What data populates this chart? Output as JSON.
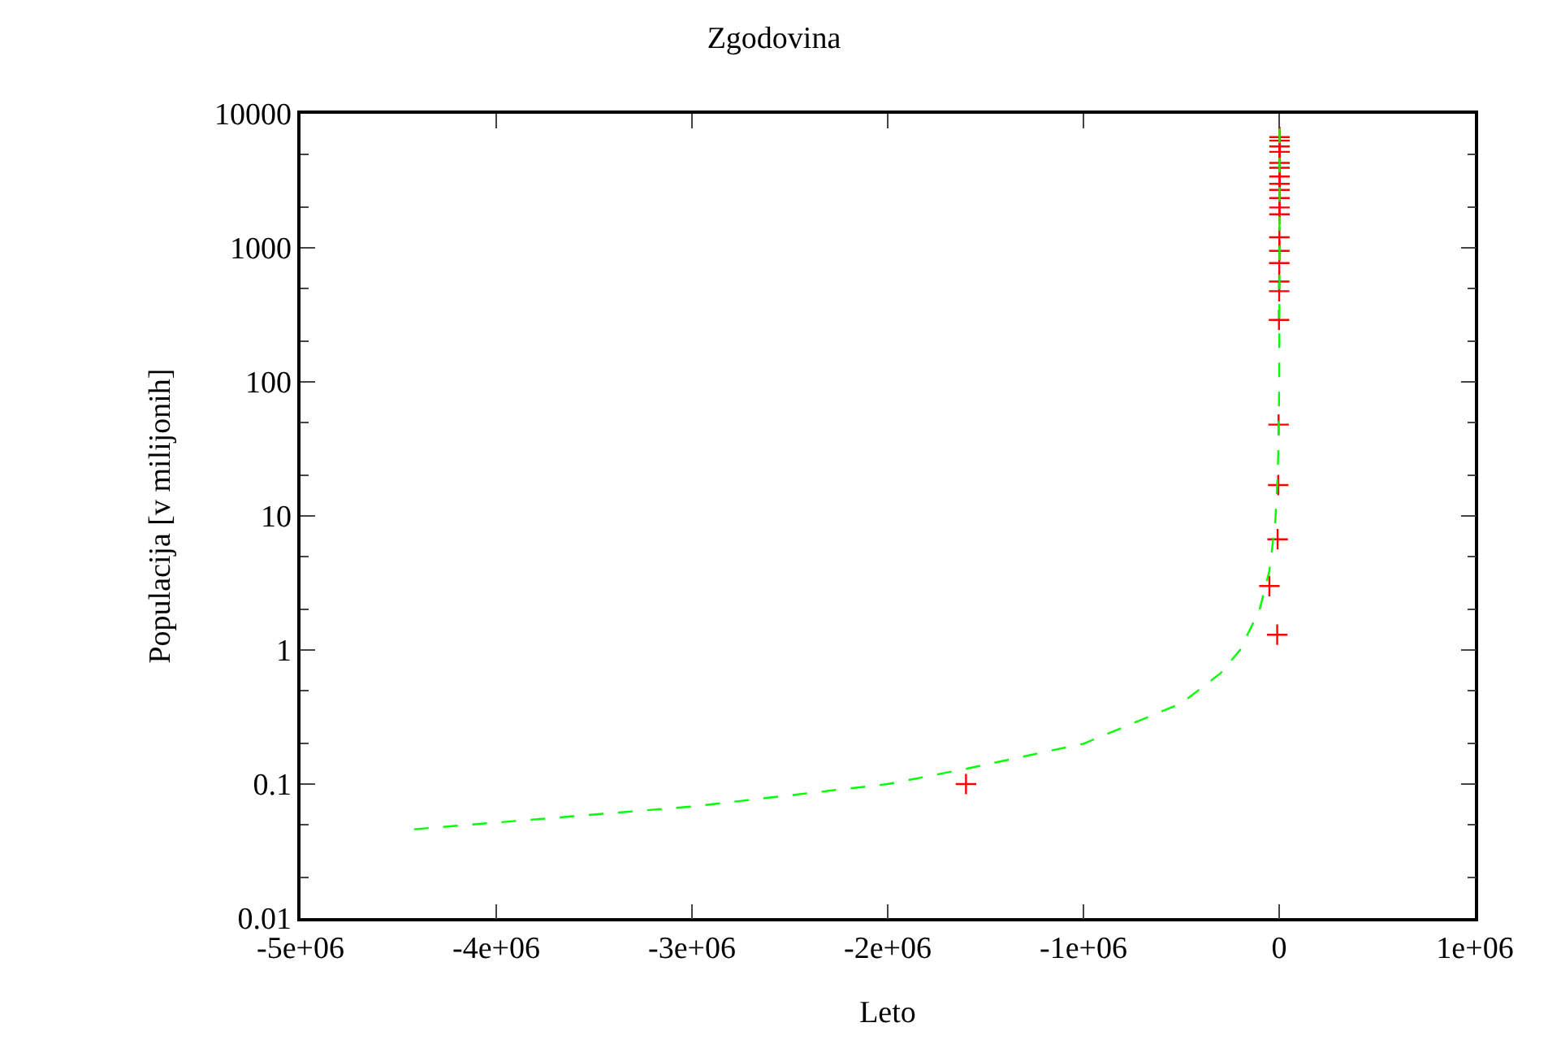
{
  "chart_data": {
    "type": "scatter",
    "title": "Zgodovina",
    "xlabel": "Leto",
    "ylabel": "Populacija [v milijonih]",
    "log": "y",
    "grid": false,
    "legend": false,
    "line_style": "dashed",
    "xlim": [
      -5000000,
      1000000
    ],
    "xticks": [
      {
        "value": -5000000,
        "label": "-5e+06"
      },
      {
        "value": -4000000,
        "label": "-4e+06"
      },
      {
        "value": -3000000,
        "label": "-3e+06"
      },
      {
        "value": -2000000,
        "label": "-2e+06"
      },
      {
        "value": -1000000,
        "label": "-1e+06"
      },
      0,
      {
        "value": 1000000,
        "label": "1e+06"
      }
    ],
    "ylim": [
      0.01,
      10000
    ],
    "yticks": [
      0.01,
      0.1,
      1,
      10,
      100,
      1000,
      10000
    ],
    "series": [
      {
        "marker": "cross",
        "color": "#ff0000",
        "x": [
          -1600000,
          -50000,
          -10000,
          -8000,
          -5000,
          -3000,
          -1000,
          0,
          200,
          500,
          1000,
          1200,
          1500,
          1650,
          1750,
          1800,
          1850,
          1900,
          1920,
          1940,
          1950,
          1960,
          1970,
          1980
        ],
        "values": [
          0.1,
          3,
          1.3,
          6.7,
          17,
          48,
          290,
          475,
          560,
          770,
          950,
          1200,
          1780,
          2000,
          2350,
          2700,
          3000,
          3400,
          3950,
          4300,
          5200,
          5700,
          6300,
          6700
        ]
      },
      {
        "type": "line",
        "marker": "none",
        "color": "#00ff00",
        "x": [
          -4420000,
          -3000000,
          -2000000,
          -1600000,
          -1000000,
          -500000,
          -300000,
          -200000,
          -100000,
          -50000,
          -20000,
          -10000,
          -5000,
          -2000,
          -1000,
          0,
          1000,
          1500,
          2000,
          2005
        ],
        "values": [
          0.046,
          0.068,
          0.1,
          0.13,
          0.2,
          0.4,
          0.67,
          1,
          2,
          3.9,
          9,
          17,
          28,
          50,
          66,
          100,
          190,
          380,
          6700,
          8000
        ]
      }
    ]
  }
}
